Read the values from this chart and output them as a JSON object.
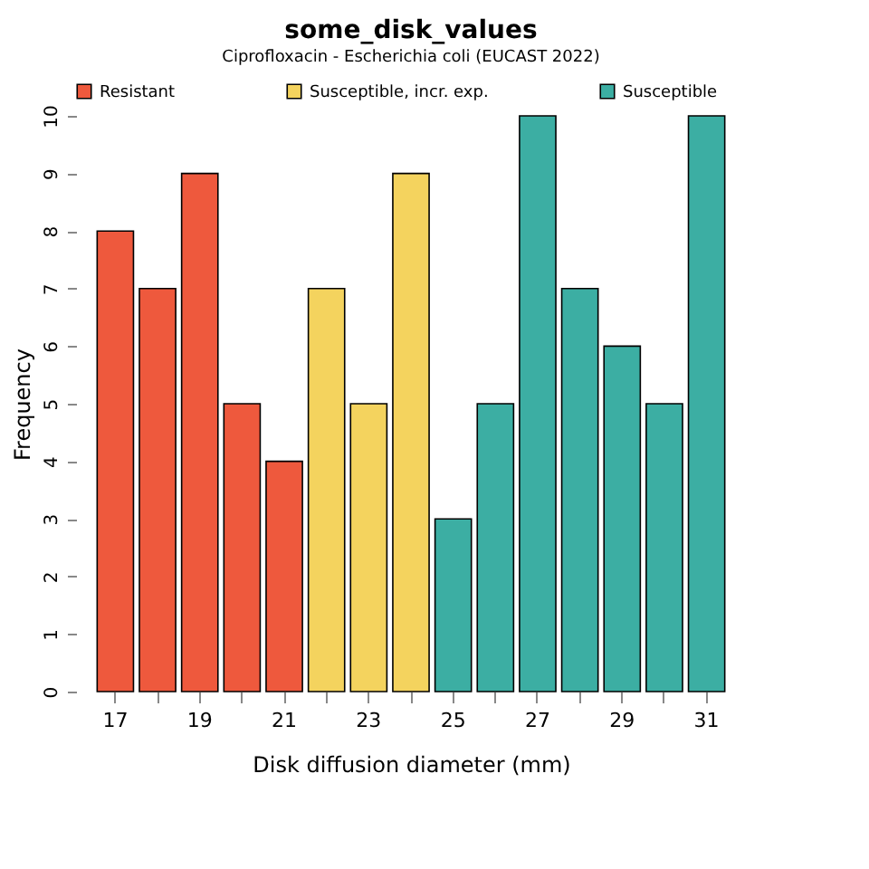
{
  "chart_data": {
    "type": "bar",
    "title": "some_disk_values",
    "subtitle": "Ciprofloxacin - Escherichia coli (EUCAST 2022)",
    "xlabel": "Disk diffusion diameter (mm)",
    "ylabel": "Frequency",
    "categories": [
      "17",
      null,
      "19",
      null,
      "21",
      null,
      "23",
      null,
      "25",
      null,
      "27",
      null,
      "29",
      null,
      "31"
    ],
    "series": [
      {
        "name": "Resistant",
        "color": "#ee593d",
        "values": [
          8,
          7,
          9,
          5,
          4,
          null,
          null,
          null,
          null,
          null,
          null,
          null,
          null,
          null,
          null
        ]
      },
      {
        "name": "Susceptible, incr. exp.",
        "color": "#f4d35e",
        "values": [
          null,
          null,
          null,
          null,
          null,
          7,
          5,
          9,
          null,
          null,
          null,
          null,
          null,
          null,
          null
        ]
      },
      {
        "name": "Susceptible",
        "color": "#3caea3",
        "values": [
          null,
          null,
          null,
          null,
          null,
          null,
          null,
          null,
          3,
          5,
          10,
          7,
          6,
          5,
          10
        ]
      }
    ],
    "ylim": [
      0,
      10
    ],
    "yticks": [
      0,
      1,
      2,
      3,
      4,
      5,
      6,
      7,
      8,
      9,
      10
    ],
    "grid": false,
    "legend": "top"
  }
}
